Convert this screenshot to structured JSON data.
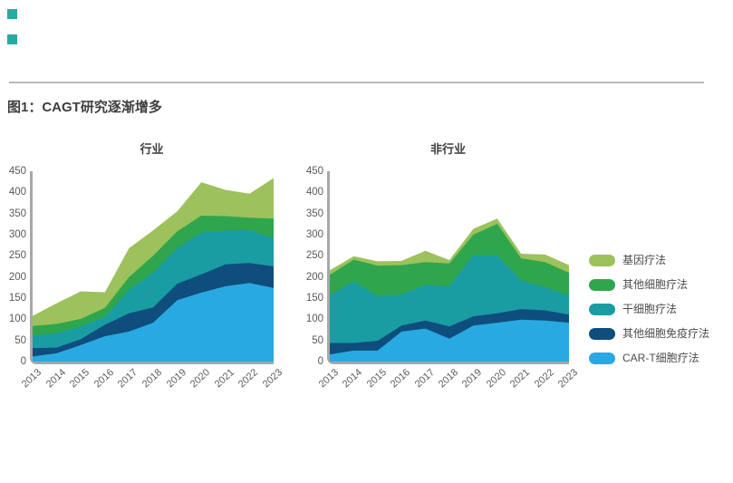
{
  "brand": {
    "square_color": "#2BA8A2"
  },
  "figure": {
    "title": "图1：CAGT研究逐渐增多"
  },
  "legend": {
    "position": "right",
    "items": [
      {
        "label": "基因疗法",
        "color": "#9DC15C"
      },
      {
        "label": "其他细胞疗法",
        "color": "#2FA64D"
      },
      {
        "label": "干细胞疗法",
        "color": "#1A9CA3"
      },
      {
        "label": "其他细胞免疫疗法",
        "color": "#0E4D7C"
      },
      {
        "label": "CAR-T细胞疗法",
        "color": "#29A9E1"
      }
    ]
  },
  "chart_data": [
    {
      "type": "area",
      "stacked": true,
      "title": "行业",
      "xlabel": "",
      "ylabel": "",
      "grid": false,
      "ylim": [
        0,
        450
      ],
      "y_ticks": [
        "0",
        "50",
        "100",
        "150",
        "200",
        "250",
        "300",
        "350",
        "400",
        "450"
      ],
      "categories": [
        "2013",
        "2014",
        "2015",
        "2016",
        "2017",
        "2018",
        "2019",
        "2020",
        "2021",
        "2022",
        "2023"
      ],
      "series": [
        {
          "name": "CAR-T细胞疗法",
          "color": "#29A9E1",
          "values": [
            12,
            20,
            39,
            60,
            71,
            92,
            145,
            163,
            178,
            186,
            174
          ]
        },
        {
          "name": "其他细胞免疫疗法",
          "color": "#0E4D7C",
          "values": [
            20,
            13,
            14,
            27,
            43,
            36,
            39,
            43,
            52,
            47,
            51
          ]
        },
        {
          "name": "干细胞疗法",
          "color": "#1A9CA3",
          "values": [
            29,
            34,
            30,
            19,
            56,
            82,
            84,
            99,
            80,
            78,
            67
          ]
        },
        {
          "name": "其他细胞疗法",
          "color": "#2FA64D",
          "values": [
            23,
            22,
            18,
            21,
            30,
            40,
            40,
            40,
            34,
            29,
            46
          ]
        },
        {
          "name": "基因疗法",
          "color": "#9DC15C",
          "values": [
            24,
            49,
            65,
            37,
            68,
            60,
            47,
            79,
            62,
            57,
            96
          ]
        }
      ]
    },
    {
      "type": "area",
      "stacked": true,
      "title": "非行业",
      "xlabel": "",
      "ylabel": "",
      "grid": false,
      "ylim": [
        0,
        450
      ],
      "y_ticks": [
        "0",
        "50",
        "100",
        "150",
        "200",
        "250",
        "300",
        "350",
        "400",
        "450"
      ],
      "categories": [
        "2013",
        "2014",
        "2015",
        "2016",
        "2017",
        "2018",
        "2019",
        "2020",
        "2021",
        "2022",
        "2023"
      ],
      "series": [
        {
          "name": "CAR-T细胞疗法",
          "color": "#29A9E1",
          "values": [
            17,
            26,
            26,
            71,
            78,
            54,
            85,
            92,
            99,
            97,
            92
          ]
        },
        {
          "name": "其他细胞免疫疗法",
          "color": "#0E4D7C",
          "values": [
            27,
            18,
            23,
            14,
            19,
            29,
            22,
            22,
            25,
            24,
            19
          ]
        },
        {
          "name": "干细胞疗法",
          "color": "#1A9CA3",
          "values": [
            112,
            146,
            105,
            74,
            84,
            95,
            145,
            137,
            68,
            55,
            45
          ]
        },
        {
          "name": "其他细胞疗法",
          "color": "#2FA64D",
          "values": [
            49,
            51,
            73,
            69,
            54,
            54,
            48,
            75,
            52,
            59,
            54
          ]
        },
        {
          "name": "基因疗法",
          "color": "#9DC15C",
          "values": [
            11,
            8,
            10,
            10,
            27,
            8,
            14,
            12,
            11,
            18,
            18
          ]
        }
      ]
    }
  ]
}
